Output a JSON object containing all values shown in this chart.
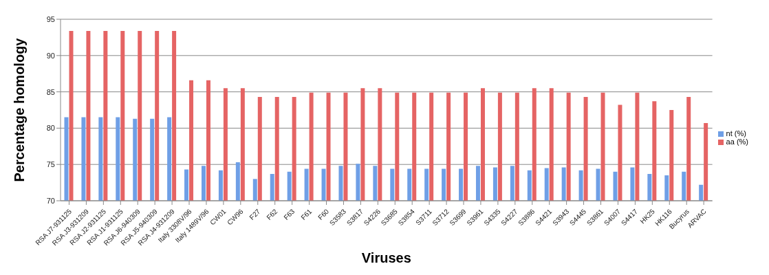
{
  "chart_data": {
    "type": "bar",
    "xlabel": "Viruses",
    "ylabel": "Percentage homology",
    "categories": [
      "RSA J7-931125",
      "RSA J3-931209",
      "RSA J2-931125",
      "RSA J1-931125",
      "RSA J6-940309",
      "RSA J5-940309",
      "RSA J4-931209",
      "Italy 3308V/96",
      "Italy 1489V/96",
      "CW01",
      "CW96",
      "F27",
      "F62",
      "F63",
      "F61",
      "F60",
      "S3583",
      "S3817",
      "S4226",
      "S3685",
      "S3854",
      "S3711",
      "S3712",
      "S3699",
      "S3961",
      "S4335",
      "S4227",
      "S3886",
      "S4421",
      "S3943",
      "S4445",
      "S3861",
      "S4007",
      "S4417",
      "HK25",
      "HK116",
      "Bucyrus",
      "ARVAC"
    ],
    "series": [
      {
        "name": "nt (%)",
        "color": "#6f9fe6",
        "values": [
          81.5,
          81.5,
          81.5,
          81.5,
          81.3,
          81.3,
          81.5,
          74.3,
          74.8,
          74.2,
          75.3,
          73.0,
          73.7,
          74.0,
          74.4,
          74.4,
          74.8,
          75.1,
          74.8,
          74.4,
          74.4,
          74.4,
          74.4,
          74.4,
          74.8,
          74.6,
          74.8,
          74.2,
          74.5,
          74.6,
          74.2,
          74.4,
          74.0,
          74.6,
          73.7,
          73.5,
          74.0,
          72.2
        ]
      },
      {
        "name": "aa (%)",
        "color": "#e56464",
        "values": [
          93.4,
          93.4,
          93.4,
          93.4,
          93.4,
          93.4,
          93.4,
          86.6,
          86.6,
          85.5,
          85.5,
          84.3,
          84.3,
          84.3,
          84.9,
          84.9,
          84.9,
          85.5,
          85.5,
          84.9,
          84.9,
          84.9,
          84.9,
          84.9,
          85.5,
          84.9,
          84.9,
          85.5,
          85.5,
          84.9,
          84.3,
          84.9,
          83.2,
          84.9,
          83.7,
          82.5,
          84.3,
          80.7
        ]
      }
    ],
    "ylim": [
      70,
      95
    ],
    "yticks": [
      70,
      75,
      80,
      85,
      90,
      95
    ],
    "grid": "y",
    "legend": "right"
  }
}
